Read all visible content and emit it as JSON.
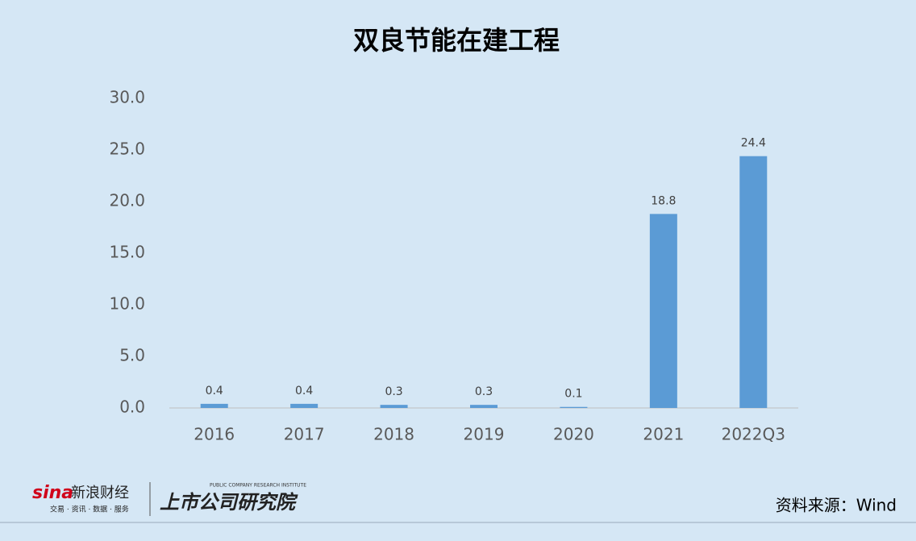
{
  "chart_data": {
    "type": "bar",
    "title": "双良节能在建工程",
    "categories": [
      "2016",
      "2017",
      "2018",
      "2019",
      "2020",
      "2021",
      "2022Q3"
    ],
    "values": [
      0.4,
      0.4,
      0.3,
      0.3,
      0.1,
      18.8,
      24.4
    ],
    "color": "#5b9bd5",
    "ylim": [
      0,
      30
    ],
    "yticks": [
      {
        "value": 0,
        "label": "0.0"
      },
      {
        "value": 5,
        "label": "5.0"
      },
      {
        "value": 10,
        "label": "10.0"
      },
      {
        "value": 15,
        "label": "15.0"
      },
      {
        "value": 20,
        "label": "20.0"
      },
      {
        "value": 25,
        "label": "25.0"
      },
      {
        "value": 30,
        "label": "30.0"
      }
    ],
    "grid": false,
    "source": "资料来源：Wind"
  },
  "logo": {
    "sina": "新浪财经",
    "sina_tagline": "交易 · 资讯 · 数据 · 服务",
    "institute": "上市公司研究院",
    "institute_en": "PUBLIC COMPANY RESEARCH INSTITUTE"
  }
}
